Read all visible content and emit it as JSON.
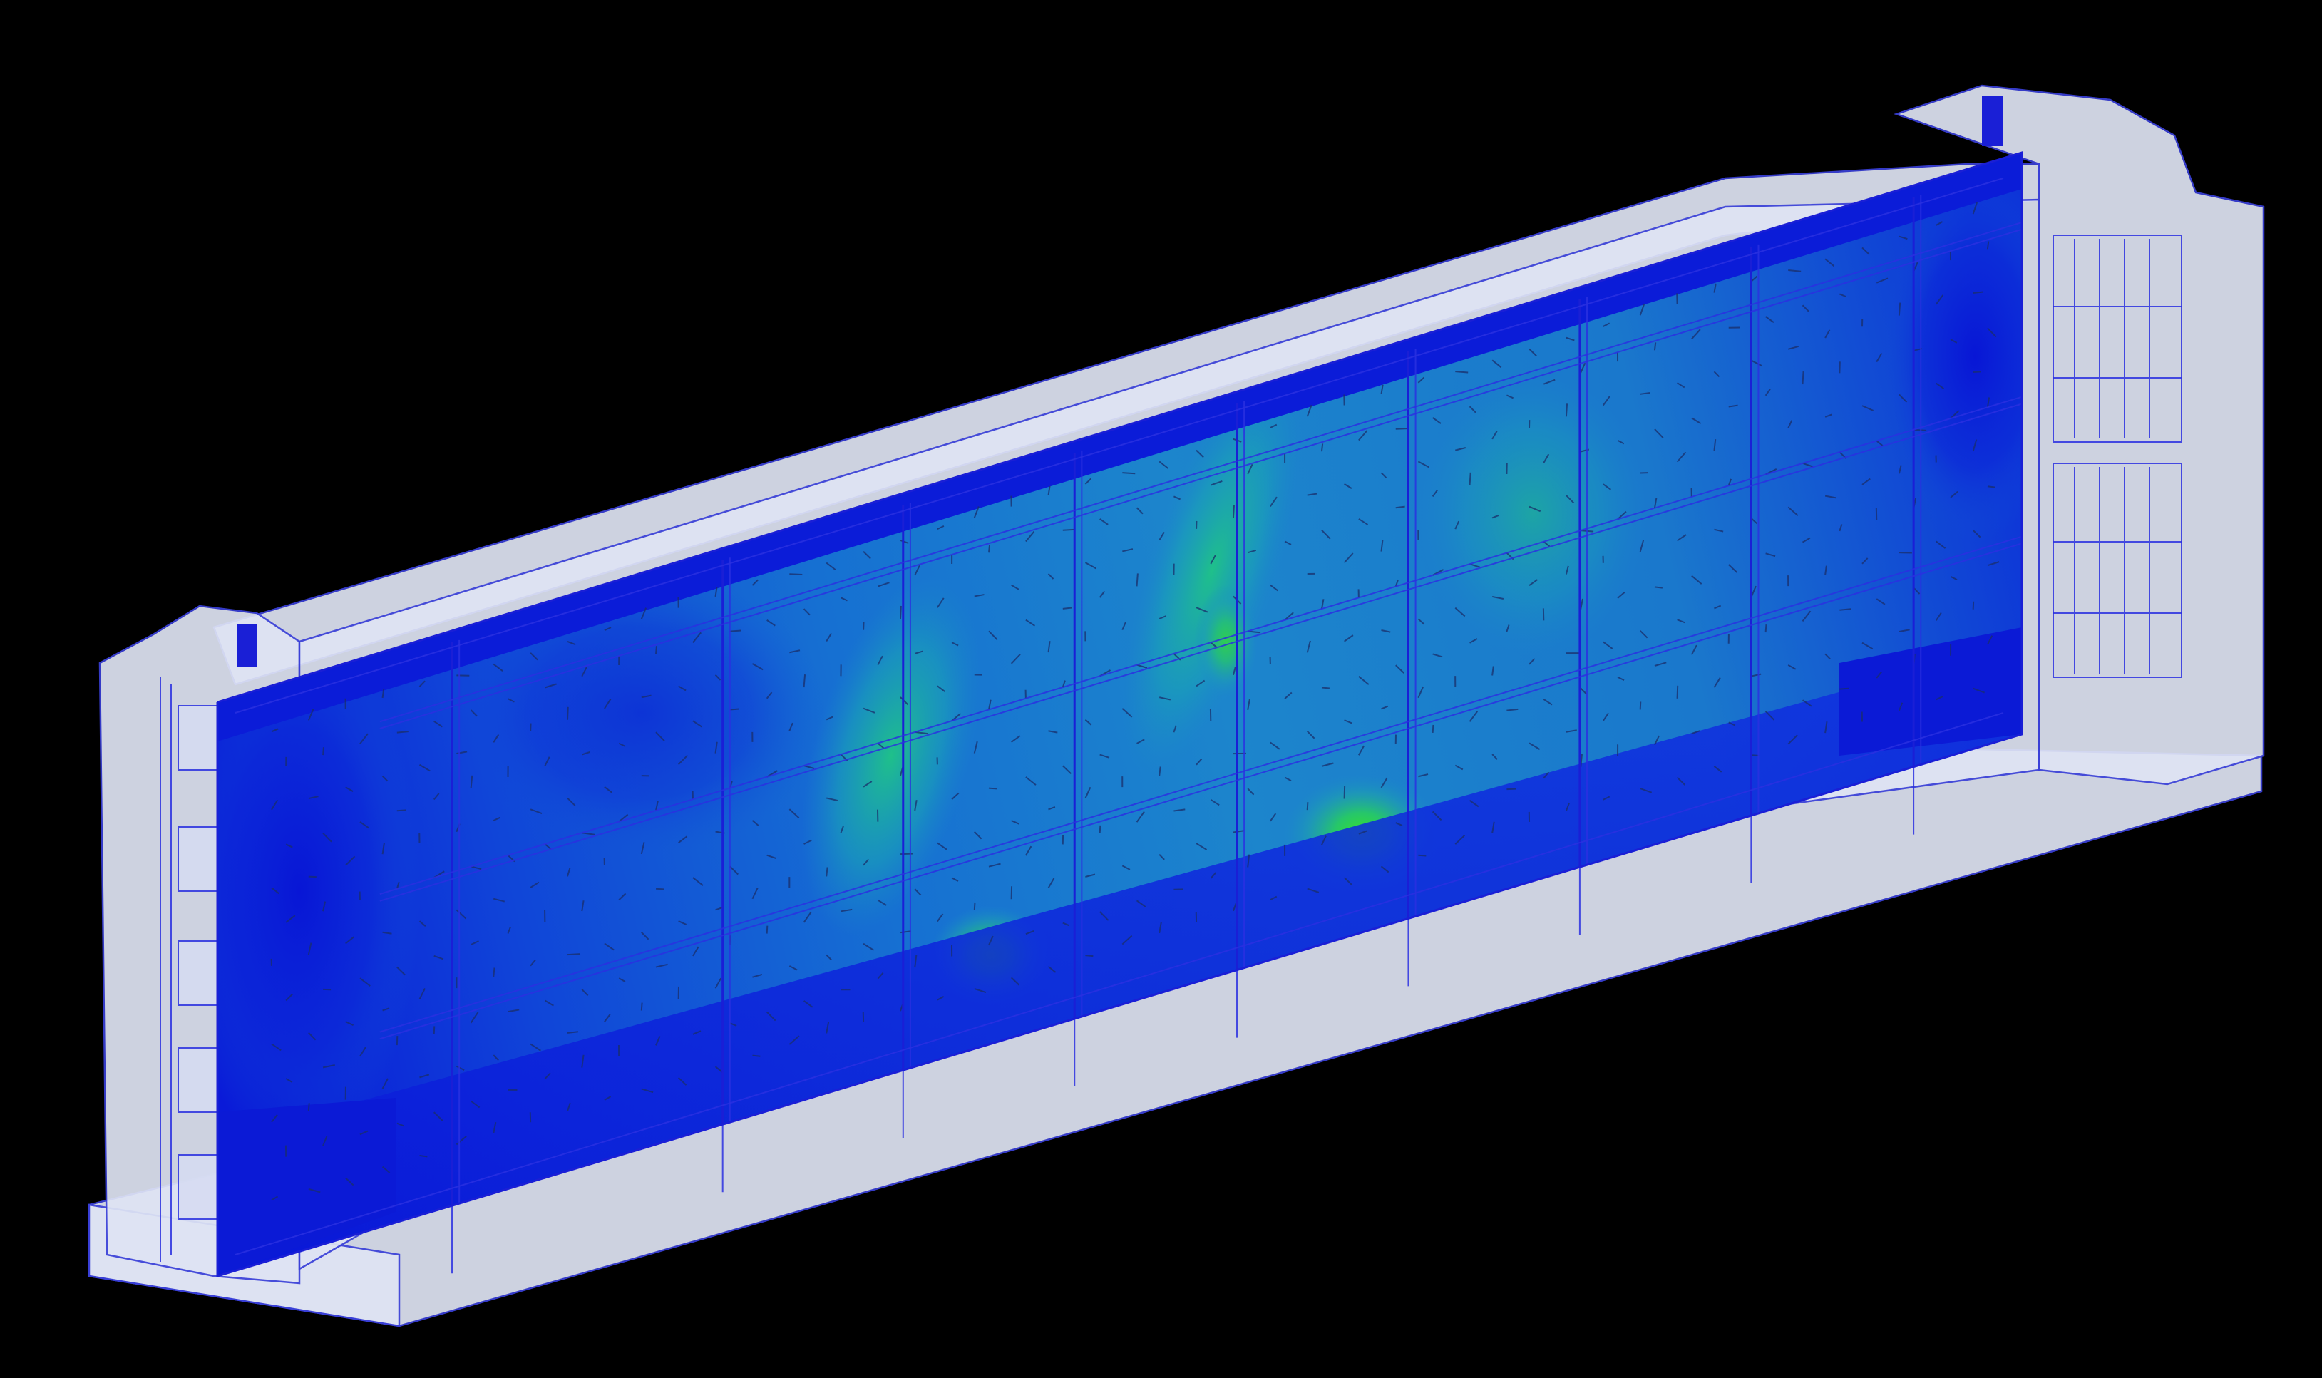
{
  "scene": {
    "subject": "container-cfd-section",
    "colors": {
      "background": "#000000",
      "housing": "#dfe4f4",
      "wire": "#1a1fd6",
      "low": "#0a16d8",
      "mid": "#1a7fcf",
      "high": "#2bd44a"
    }
  }
}
